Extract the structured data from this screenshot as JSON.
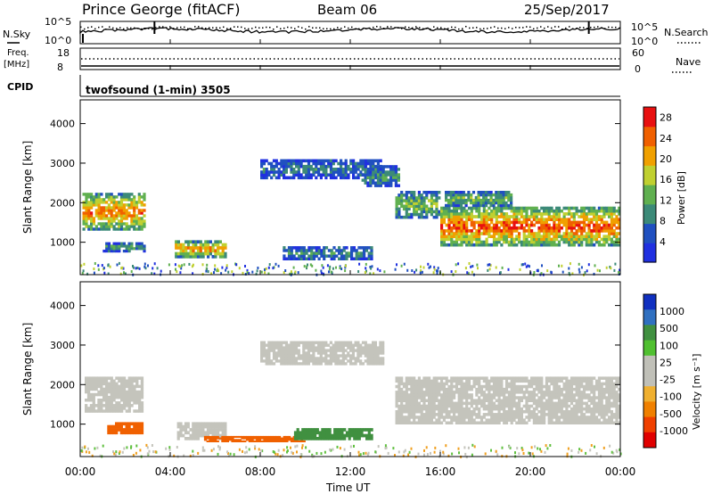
{
  "header": {
    "station": "Prince George (fitACF)",
    "beam": "Beam 06",
    "date": "25/Sep/2017"
  },
  "top_panels": {
    "nsky_label": "N.Sky",
    "nsearch_label": "N.Search",
    "freq_label": "Freq.",
    "freq_unit": "[MHz]",
    "nave_label": "Nave",
    "cpid_label": "CPID",
    "left_ticks_noise": [
      "10^5",
      "10^0"
    ],
    "right_ticks_noise": [
      "10^5",
      "10^0"
    ],
    "left_ticks_freq": [
      "18",
      "8"
    ],
    "right_ticks_nave": [
      "60",
      "0"
    ],
    "cpid_text": "twofsound (1-min) 3505"
  },
  "colors": {
    "scatter_gray": "#c4c4bc",
    "power_scale": [
      "#2030e0",
      "#2050c0",
      "#3c8a78",
      "#60b050",
      "#c0d030",
      "#f0a000",
      "#f06000",
      "#e81010"
    ],
    "velocity_scale": [
      "#e00000",
      "#f04000",
      "#f08000",
      "#f0b030",
      "#c0c0b8",
      "#c0c0b8",
      "#50c030",
      "#409040",
      "#3070c0",
      "#1030c0"
    ]
  },
  "chart_data": [
    {
      "type": "heatmap",
      "name": "power",
      "ylabel": "Slant Range [km]",
      "xlabel": "Time UT",
      "xlim": [
        "00:00",
        "00:00"
      ],
      "ylim": [
        180,
        4600
      ],
      "y_ticks": [
        "1000",
        "2000",
        "3000",
        "4000"
      ],
      "colorbar": {
        "label": "Power [dB]",
        "ticks": [
          "4",
          "8",
          "12",
          "16",
          "20",
          "24",
          "28"
        ],
        "range": [
          0,
          30
        ]
      },
      "bands": [
        {
          "t0": 0.1,
          "t1": 2.9,
          "r0": 1300,
          "r1": 2250,
          "level": 22
        },
        {
          "t0": 1.0,
          "t1": 2.9,
          "r0": 750,
          "r1": 1000,
          "level": 12
        },
        {
          "t0": 4.2,
          "t1": 6.5,
          "r0": 600,
          "r1": 1050,
          "level": 22
        },
        {
          "t0": 9.0,
          "t1": 13.0,
          "r0": 550,
          "r1": 900,
          "level": 10
        },
        {
          "t0": 8.0,
          "t1": 13.4,
          "r0": 2600,
          "r1": 3100,
          "level": 8
        },
        {
          "t0": 12.5,
          "t1": 14.2,
          "r0": 2400,
          "r1": 2950,
          "level": 10
        },
        {
          "t0": 14.0,
          "t1": 16.0,
          "r0": 1600,
          "r1": 2300,
          "level": 14
        },
        {
          "t0": 16.0,
          "t1": 24.0,
          "r0": 900,
          "r1": 1900,
          "level": 24
        },
        {
          "t0": 16.2,
          "t1": 19.2,
          "r0": 1900,
          "r1": 2300,
          "level": 14
        }
      ]
    },
    {
      "type": "heatmap",
      "name": "velocity",
      "ylabel": "Slant Range [km]",
      "xlabel": "Time UT",
      "x_ticks": [
        "00:00",
        "04:00",
        "08:00",
        "12:00",
        "16:00",
        "20:00",
        "00:00"
      ],
      "ylim": [
        180,
        4600
      ],
      "y_ticks": [
        "1000",
        "2000",
        "3000",
        "4000"
      ],
      "colorbar": {
        "label": "Velocity [m s⁻¹]",
        "ticks": [
          "1000",
          "500",
          "100",
          "25",
          "-25",
          "-100",
          "-500",
          "-1000"
        ]
      },
      "bands": [
        {
          "t0": 0.2,
          "t1": 2.8,
          "r0": 1300,
          "r1": 2200,
          "velocity": 0
        },
        {
          "t0": 1.2,
          "t1": 2.8,
          "r0": 750,
          "r1": 1050,
          "velocity": -300
        },
        {
          "t0": 4.3,
          "t1": 6.5,
          "r0": 600,
          "r1": 1050,
          "velocity": 0
        },
        {
          "t0": 5.5,
          "t1": 10.0,
          "r0": 550,
          "r1": 700,
          "velocity": -150
        },
        {
          "t0": 9.5,
          "t1": 13.0,
          "r0": 600,
          "r1": 900,
          "velocity": 150
        },
        {
          "t0": 8.0,
          "t1": 13.5,
          "r0": 2500,
          "r1": 3100,
          "velocity": 0
        },
        {
          "t0": 14.0,
          "t1": 24.0,
          "r0": 1000,
          "r1": 2200,
          "velocity": 0
        }
      ]
    }
  ]
}
